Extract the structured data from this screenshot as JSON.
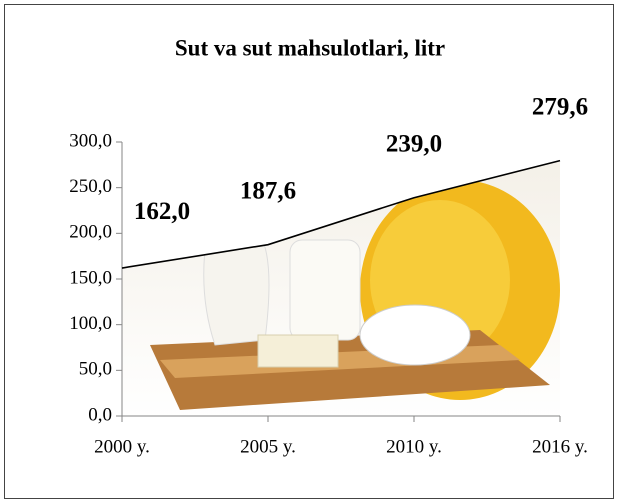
{
  "chart_data": {
    "type": "area",
    "title": "Sut va sut mahsulotlari, litr",
    "categories": [
      "2000 y.",
      "2005 y.",
      "2010 y.",
      "2016 y."
    ],
    "values": [
      162.0,
      187.6,
      239.0,
      279.6
    ],
    "value_labels": [
      "162,0",
      "187,6",
      "239,0",
      "279,6"
    ],
    "color": "#000000",
    "ylim": [
      0,
      300
    ],
    "yticks": [
      {
        "value": 0,
        "label": "0,0"
      },
      {
        "value": 50,
        "label": "50,0"
      },
      {
        "value": 100,
        "label": "100,0"
      },
      {
        "value": 150,
        "label": "150,0"
      },
      {
        "value": 200,
        "label": "200,0"
      },
      {
        "value": 250,
        "label": "250,0"
      },
      {
        "value": 300,
        "label": "300,0"
      }
    ]
  }
}
